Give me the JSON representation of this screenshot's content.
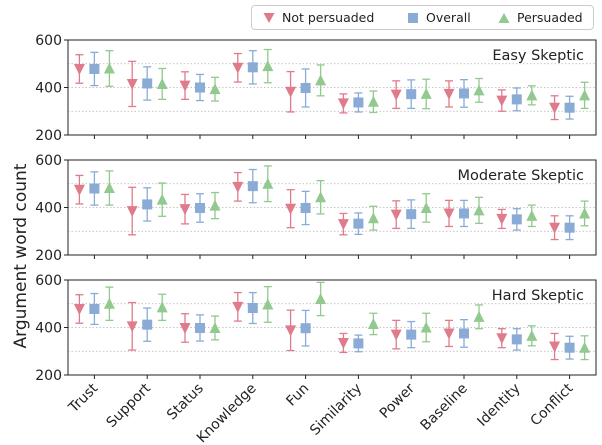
{
  "chart_data": {
    "type": "errorbar",
    "ylabel": "Argument word count",
    "categories": [
      "Trust",
      "Support",
      "Status",
      "Knowledge",
      "Fun",
      "Similarity",
      "Power",
      "Baseline",
      "Identity",
      "Conflict"
    ],
    "ylim": [
      200,
      600
    ],
    "yticks": [
      200,
      400,
      600
    ],
    "grid": "horizontal dotted",
    "legend": {
      "placement": "top-right",
      "entries": [
        {
          "name": "Not persuaded",
          "color": "#e07b8c",
          "marker": "triangle-down"
        },
        {
          "name": "Overall",
          "color": "#8aabd6",
          "marker": "square"
        },
        {
          "name": "Persuaded",
          "color": "#92c98f",
          "marker": "triangle-up"
        }
      ]
    },
    "panels": [
      {
        "title": "Easy Skeptic",
        "series": [
          {
            "name": "Not persuaded",
            "mean": [
              478,
              415,
              408,
              483,
              382,
              333,
              370,
              373,
              345,
              315
            ],
            "err": [
              60,
              95,
              58,
              60,
              85,
              40,
              58,
              55,
              45,
              50
            ]
          },
          {
            "name": "Overall",
            "mean": [
              478,
              417,
              400,
              485,
              398,
              337,
              372,
              375,
              350,
              315
            ],
            "err": [
              70,
              70,
              55,
              70,
              80,
              40,
              60,
              58,
              48,
              48
            ]
          },
          {
            "name": "Persuaded",
            "mean": [
              480,
              415,
              393,
              490,
              430,
              340,
              373,
              388,
              367,
              367
            ],
            "err": [
              75,
              65,
              50,
              70,
              65,
              45,
              62,
              50,
              40,
              55
            ]
          }
        ]
      },
      {
        "title": "Moderate Skeptic",
        "series": [
          {
            "name": "Not persuaded",
            "mean": [
              475,
              385,
              393,
              487,
              395,
              330,
              370,
              375,
              352,
              315
            ],
            "err": [
              60,
              100,
              62,
              60,
              80,
              45,
              58,
              55,
              40,
              50
            ]
          },
          {
            "name": "Overall",
            "mean": [
              480,
              413,
              398,
              490,
              398,
              332,
              372,
              375,
              350,
              315
            ],
            "err": [
              70,
              70,
              60,
              70,
              70,
              45,
              60,
              55,
              45,
              50
            ]
          },
          {
            "name": "Persuaded",
            "mean": [
              482,
              433,
              408,
              500,
              443,
              355,
              398,
              388,
              365,
              375
            ],
            "err": [
              72,
              70,
              55,
              75,
              70,
              50,
              60,
              55,
              45,
              52
            ]
          }
        ]
      },
      {
        "title": "Hard Skeptic",
        "series": [
          {
            "name": "Not persuaded",
            "mean": [
              478,
              405,
              398,
              487,
              388,
              335,
              370,
              375,
              355,
              320
            ],
            "err": [
              60,
              100,
              60,
              60,
              85,
              40,
              60,
              55,
              40,
              55
            ]
          },
          {
            "name": "Overall",
            "mean": [
              478,
              412,
              398,
              482,
              397,
              333,
              370,
              375,
              350,
              315
            ],
            "err": [
              65,
              70,
              55,
              65,
              75,
              35,
              55,
              58,
              45,
              48
            ]
          },
          {
            "name": "Persuaded",
            "mean": [
              500,
              485,
              398,
              497,
              520,
              415,
              400,
              445,
              365,
              315
            ],
            "err": [
              70,
              55,
              50,
              75,
              70,
              45,
              60,
              50,
              42,
              50
            ]
          }
        ]
      }
    ]
  }
}
